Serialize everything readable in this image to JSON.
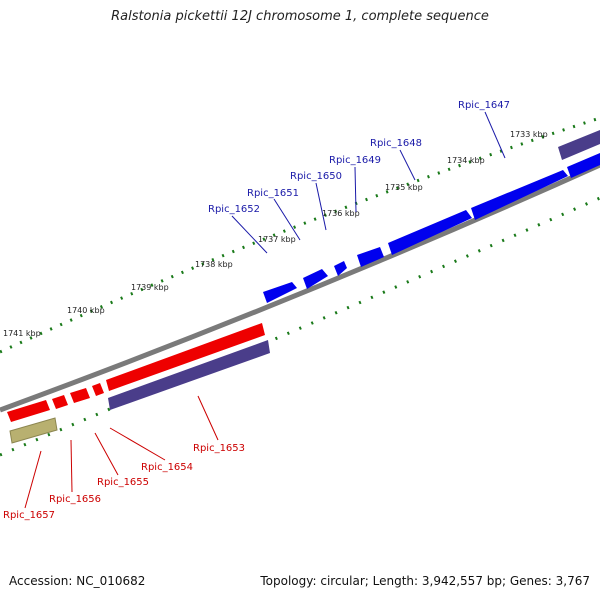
{
  "title": "Ralstonia pickettii 12J chromosome 1, complete sequence",
  "footer": {
    "accession": "Accession: NC_010682",
    "summary": "Topology: circular; Length: 3,942,557 bp; Genes: 3,767"
  },
  "colors": {
    "forward_gene": "#0000ee",
    "reverse_gene": "#ee0000",
    "forward_label": "#1a1aa8",
    "reverse_label": "#cc0000",
    "other_feature": "#4a3d8a",
    "pseudo_feature": "#b8b070",
    "backbone": "#7a7a7a",
    "tick": "#1a7a1a"
  },
  "ticks": [
    "1733 kbp",
    "1734 kbp",
    "1735 kbp",
    "1736 kbp",
    "1737 kbp",
    "1738 kbp",
    "1739 kbp",
    "1740 kbp",
    "1741 kbp"
  ],
  "forward_labels": [
    "Rpic_1647",
    "Rpic_1648",
    "Rpic_1649",
    "Rpic_1650",
    "Rpic_1651",
    "Rpic_1652"
  ],
  "reverse_labels": [
    "Rpic_1653",
    "Rpic_1654",
    "Rpic_1655",
    "Rpic_1656",
    "Rpic_1657"
  ]
}
